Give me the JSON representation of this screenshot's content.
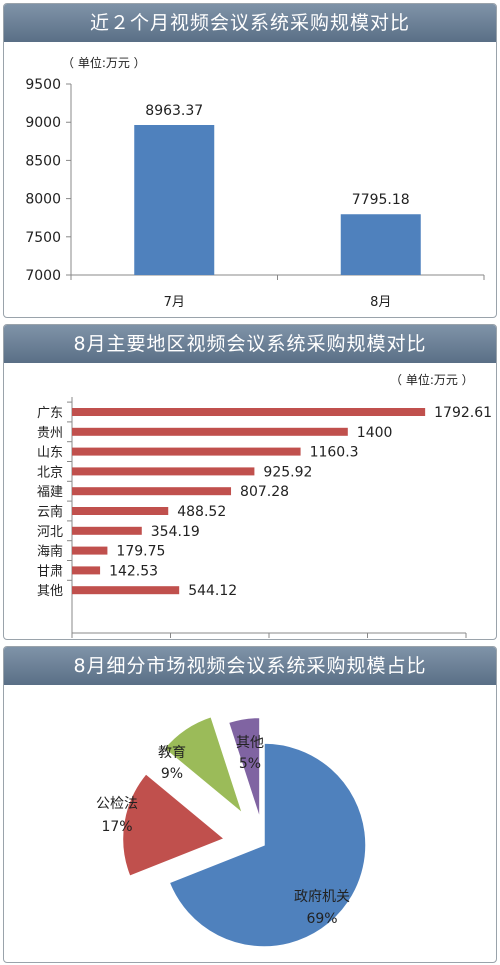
{
  "chart_data": [
    {
      "type": "bar",
      "title": "近２个月视频会议系统采购规模对比",
      "unit": "（ 单位:万元 ）",
      "categories": [
        "7月",
        "8月"
      ],
      "values": [
        8963.37,
        7795.18
      ],
      "value_labels": [
        "8963.37",
        "7795.18"
      ],
      "ylim": [
        7000,
        9500
      ],
      "yticks": [
        "7000",
        "7500",
        "8000",
        "8500",
        "9000",
        "9500"
      ],
      "color": "#4f81bd"
    },
    {
      "type": "bar",
      "orientation": "horizontal",
      "title": "8月主要地区视频会议系统采购规模对比",
      "unit": "（ 单位:万元 ）",
      "categories": [
        "广东",
        "贵州",
        "山东",
        "北京",
        "福建",
        "云南",
        "河北",
        "海南",
        "甘肃",
        "其他"
      ],
      "values": [
        1792.61,
        1400,
        1160.3,
        925.92,
        807.28,
        488.52,
        354.19,
        179.75,
        142.53,
        544.12
      ],
      "value_labels": [
        "1792.61",
        "1400",
        "1160.3",
        "925.92",
        "807.28",
        "488.52",
        "354.19",
        "179.75",
        "142.53",
        "544.12"
      ],
      "xlim": [
        0,
        2000
      ],
      "xticks": [
        "0",
        "500",
        "1000",
        "1500",
        "2000"
      ],
      "color": "#c0504d"
    },
    {
      "type": "pie",
      "title": "8月细分市场视频会议系统采购规模占比",
      "slices": [
        {
          "label": "政府机关",
          "percent": "69%",
          "value": 69,
          "color": "#4f81bd"
        },
        {
          "label": "公检法",
          "percent": "17%",
          "value": 17,
          "color": "#c0504d"
        },
        {
          "label": "教育",
          "percent": "9%",
          "value": 9,
          "color": "#9bbb59"
        },
        {
          "label": "其他",
          "percent": "5%",
          "value": 5,
          "color": "#8064a2"
        }
      ]
    }
  ]
}
